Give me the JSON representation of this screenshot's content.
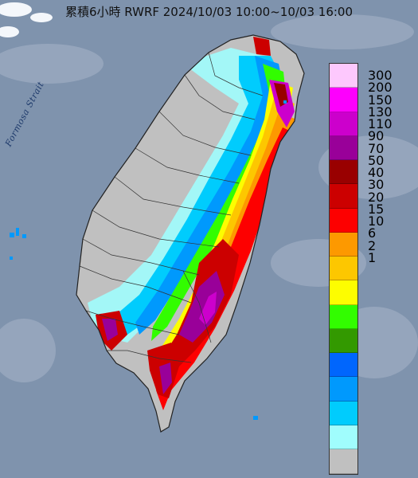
{
  "title": "累積6小時 RWRF 2024/10/03 10:00~10/03 16:00",
  "strait_label": "Formosa Strait",
  "legend": {
    "items": [
      {
        "label": "300",
        "color": "#fdc8fd"
      },
      {
        "label": "200",
        "color": "#fd00fd"
      },
      {
        "label": "150",
        "color": "#cc00cc"
      },
      {
        "label": "130",
        "color": "#990099"
      },
      {
        "label": "110",
        "color": "#990000"
      },
      {
        "label": "90",
        "color": "#cc0000"
      },
      {
        "label": "70",
        "color": "#fd0000"
      },
      {
        "label": "50",
        "color": "#fd9900"
      },
      {
        "label": "40",
        "color": "#fdc700"
      },
      {
        "label": "30",
        "color": "#fdfd00"
      },
      {
        "label": "20",
        "color": "#32fd00"
      },
      {
        "label": "15",
        "color": "#339900"
      },
      {
        "label": "10",
        "color": "#0066fd"
      },
      {
        "label": "6",
        "color": "#0099fd"
      },
      {
        "label": "2",
        "color": "#00ccfd"
      },
      {
        "label": "1",
        "color": "#a0fdfd"
      },
      {
        "label": "",
        "color": "#c0c0c0"
      }
    ]
  },
  "colors": {
    "sea": "#7f93ad",
    "no_rain": "#c0c0c0"
  }
}
